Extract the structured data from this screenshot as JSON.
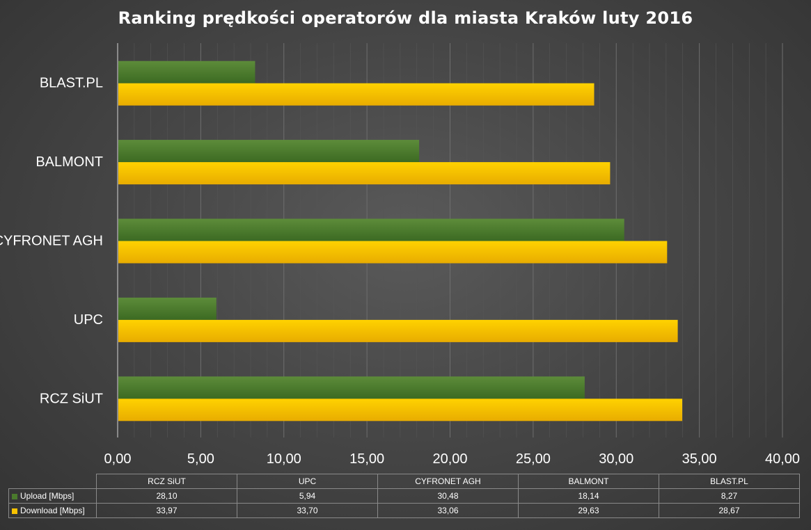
{
  "title": "Ranking prędkości operatorów dla miasta Kraków luty 2016",
  "chart_data": {
    "type": "bar",
    "orientation": "horizontal",
    "title": "Ranking prędkości operatorów dla miasta Kraków luty 2016",
    "categories": [
      "RCZ SiUT",
      "UPC",
      "CYFRONET AGH",
      "BALMONT",
      "BLAST.PL"
    ],
    "series": [
      {
        "name": "Upload [Mbps]",
        "color": "#4a7a2c",
        "values": [
          28.1,
          5.94,
          30.48,
          18.14,
          8.27
        ]
      },
      {
        "name": "Download [Mbps]",
        "color": "#f8c200",
        "values": [
          33.97,
          33.7,
          33.06,
          29.63,
          28.67
        ]
      }
    ],
    "xlim": [
      0,
      40
    ],
    "xticks": [
      "0,00",
      "5,00",
      "10,00",
      "15,00",
      "20,00",
      "25,00",
      "30,00",
      "35,00",
      "40,00"
    ],
    "grid": true,
    "legend": "data-table"
  },
  "table": {
    "headers": [
      "RCZ SiUT",
      "UPC",
      "CYFRONET AGH",
      "BALMONT",
      "BLAST.PL"
    ],
    "rows": [
      {
        "label": "Upload [Mbps]",
        "color": "#4a7a2c",
        "cells": [
          "28,10",
          "5,94",
          "30,48",
          "18,14",
          "8,27"
        ]
      },
      {
        "label": "Download [Mbps]",
        "color": "#f8c200",
        "cells": [
          "33,97",
          "33,70",
          "33,06",
          "29,63",
          "28,67"
        ]
      }
    ]
  }
}
